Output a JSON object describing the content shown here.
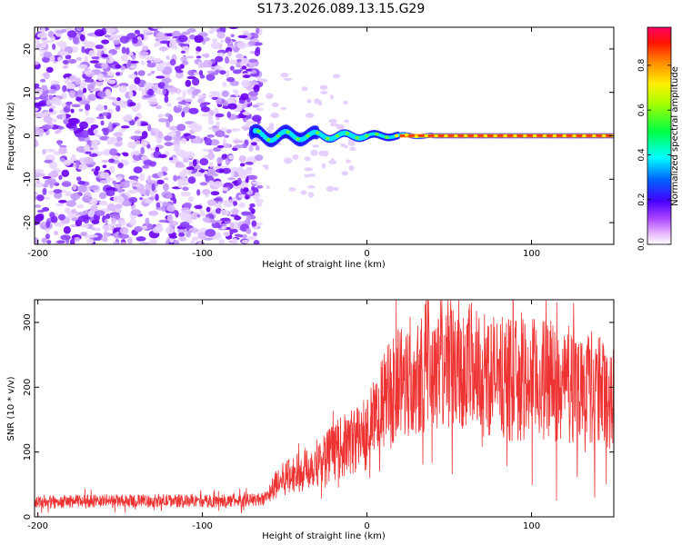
{
  "chart_data": [
    {
      "type": "heatmap",
      "title": "S173.2026.089.13.15.G29",
      "xlabel": "Height of straight line (km)",
      "ylabel": "Frequency (Hz)",
      "xlim": [
        -202,
        150
      ],
      "ylim": [
        -25,
        25
      ],
      "xticks": [
        -200,
        -100,
        0,
        100
      ],
      "xtick_labels": [
        "-200",
        "-100",
        "0",
        "100"
      ],
      "yticks": [
        -20,
        -10,
        0,
        10,
        20
      ],
      "ytick_labels": [
        "-20",
        "-10",
        "0",
        "10",
        "20"
      ],
      "noise_region_km": [
        -202,
        -68
      ],
      "signal_line_hz": 0,
      "colorbar": {
        "label": "Normalized spectral amplitude",
        "range": [
          0,
          0.97
        ],
        "ticks": [
          0,
          0.2,
          0.4,
          0.6,
          0.8
        ],
        "tick_labels": [
          "0.0",
          "0.2",
          "0.4",
          "0.6",
          "0.8"
        ],
        "colors": [
          "#ffffff",
          "#dd88ff",
          "#8800ff",
          "#0000ff",
          "#00ffff",
          "#00ff00",
          "#ffff00",
          "#ff8800",
          "#ff0000",
          "#ff0066"
        ]
      }
    },
    {
      "type": "line",
      "xlabel": "Height of straight line (km)",
      "ylabel": "SNR (10 * v/v)",
      "xlim": [
        -202,
        150
      ],
      "ylim": [
        0,
        335
      ],
      "xticks": [
        -200,
        -100,
        0,
        100
      ],
      "xtick_labels": [
        "-200",
        "-100",
        "0",
        "100"
      ],
      "yticks": [
        0,
        100,
        200,
        300
      ],
      "ytick_labels": [
        "0",
        "100",
        "200",
        "300"
      ],
      "series": [
        {
          "name": "SNR",
          "color": "#ee3333",
          "x": [
            -202,
            -180,
            -160,
            -140,
            -120,
            -100,
            -80,
            -65,
            -60,
            -55,
            -50,
            -40,
            -30,
            -20,
            -10,
            0,
            10,
            20,
            30,
            40,
            50,
            60,
            70,
            80,
            90,
            100,
            110,
            120,
            130,
            140,
            150
          ],
          "y": [
            22,
            24,
            25,
            24,
            25,
            24,
            25,
            27,
            32,
            50,
            60,
            70,
            85,
            100,
            115,
            130,
            175,
            210,
            230,
            240,
            240,
            235,
            225,
            215,
            210,
            212,
            210,
            205,
            205,
            195,
            185
          ]
        }
      ]
    }
  ]
}
